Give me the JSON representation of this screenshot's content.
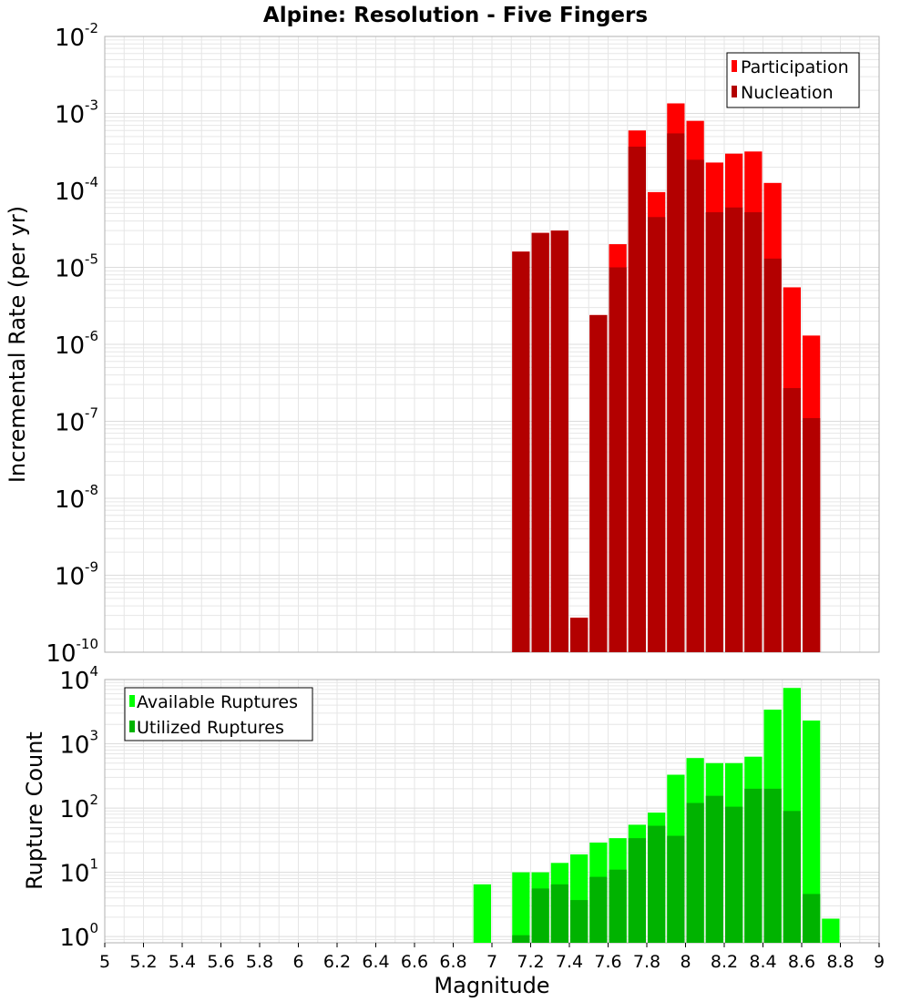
{
  "chart_data": [
    {
      "type": "bar",
      "title": "Alpine: Resolution - Five Fingers",
      "xlabel": "",
      "ylabel": "Incremental Rate (per yr)",
      "y_scale": "log",
      "ylim": [
        1e-10,
        0.01
      ],
      "xlim": [
        5,
        9
      ],
      "bin_width": 0.1,
      "grid": true,
      "legend_position": "top-right",
      "series": [
        {
          "name": "Participation",
          "color": "#ff0000",
          "x": [
            7.15,
            7.25,
            7.35,
            7.45,
            7.55,
            7.65,
            7.75,
            7.85,
            7.95,
            8.05,
            8.15,
            8.25,
            8.35,
            8.45,
            8.55,
            8.65
          ],
          "values": [
            1.6e-05,
            2.8e-05,
            3e-05,
            2.8e-10,
            2.4e-06,
            2e-05,
            0.0006,
            9.5e-05,
            0.00135,
            0.0008,
            0.00023,
            0.0003,
            0.00032,
            0.000125,
            5.5e-06,
            1.3e-06
          ]
        },
        {
          "name": "Nucleation",
          "color": "#b30000",
          "x": [
            7.15,
            7.25,
            7.35,
            7.45,
            7.55,
            7.65,
            7.75,
            7.85,
            7.95,
            8.05,
            8.15,
            8.25,
            8.35,
            8.45,
            8.55,
            8.65
          ],
          "values": [
            1.6e-05,
            2.8e-05,
            3e-05,
            2.8e-10,
            2.4e-06,
            1e-05,
            0.00037,
            4.5e-05,
            0.00055,
            0.00025,
            5.2e-05,
            6e-05,
            5.2e-05,
            1.3e-05,
            2.7e-07,
            1.1e-07
          ]
        }
      ]
    },
    {
      "type": "bar",
      "title": "",
      "xlabel": "Magnitude",
      "ylabel": "Rupture Count",
      "y_scale": "log",
      "ylim": [
        0.8,
        10000
      ],
      "xlim": [
        5,
        9
      ],
      "bin_width": 0.1,
      "grid": true,
      "legend_position": "top-left",
      "x_ticks": [
        "5",
        "5.2",
        "5.4",
        "5.6",
        "5.8",
        "6",
        "6.2",
        "6.4",
        "6.6",
        "6.8",
        "7",
        "7.2",
        "7.4",
        "7.6",
        "7.8",
        "8",
        "8.2",
        "8.4",
        "8.6",
        "8.8",
        "9"
      ],
      "series": [
        {
          "name": "Available Ruptures",
          "color": "#00ff00",
          "x": [
            6.95,
            7.15,
            7.25,
            7.35,
            7.45,
            7.55,
            7.65,
            7.75,
            7.85,
            7.95,
            8.05,
            8.15,
            8.25,
            8.35,
            8.45,
            8.55,
            8.65,
            8.75
          ],
          "values": [
            6.5,
            10,
            10,
            14,
            19,
            29,
            34,
            55,
            85,
            330,
            600,
            500,
            500,
            630,
            3400,
            7400,
            2300,
            1.9
          ]
        },
        {
          "name": "Utilized Ruptures",
          "color": "#00b300",
          "x": [
            7.15,
            7.25,
            7.35,
            7.45,
            7.55,
            7.65,
            7.75,
            7.85,
            7.95,
            8.05,
            8.15,
            8.25,
            8.35,
            8.45,
            8.55,
            8.65
          ],
          "values": [
            1.05,
            5.6,
            6.5,
            3.7,
            8.5,
            11,
            34,
            53,
            37,
            120,
            155,
            105,
            200,
            200,
            90,
            4.6
          ]
        }
      ]
    }
  ],
  "top_yticks": [
    {
      "base": "10",
      "exp": "-2",
      "power": -2
    },
    {
      "base": "10",
      "exp": "-3",
      "power": -3
    },
    {
      "base": "10",
      "exp": "-4",
      "power": -4
    },
    {
      "base": "10",
      "exp": "-5",
      "power": -5
    },
    {
      "base": "10",
      "exp": "-6",
      "power": -6
    },
    {
      "base": "10",
      "exp": "-7",
      "power": -7
    },
    {
      "base": "10",
      "exp": "-8",
      "power": -8
    },
    {
      "base": "10",
      "exp": "-9",
      "power": -9
    },
    {
      "base": "10",
      "exp": "-10",
      "power": -10
    }
  ],
  "bottom_yticks": [
    {
      "base": "10",
      "exp": "0",
      "power": 0
    },
    {
      "base": "10",
      "exp": "1",
      "power": 1
    },
    {
      "base": "10",
      "exp": "2",
      "power": 2
    },
    {
      "base": "10",
      "exp": "3",
      "power": 3
    },
    {
      "base": "10",
      "exp": "4",
      "power": 4
    }
  ]
}
